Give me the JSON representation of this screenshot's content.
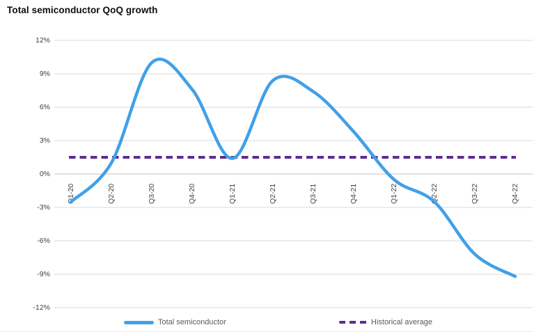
{
  "chart_data": {
    "type": "line",
    "title": "Total semiconductor QoQ growth",
    "categories": [
      "Q1-20",
      "Q2-20",
      "Q3-20",
      "Q4-20",
      "Q1-21",
      "Q2-21",
      "Q3-21",
      "Q4-21",
      "Q1-22",
      "Q2-22",
      "Q3-22",
      "Q4-22"
    ],
    "series": [
      {
        "name": "Total semiconductor",
        "style": "smooth-solid-line",
        "color": "#41a0e8",
        "values": [
          -2.5,
          1.0,
          10.0,
          7.6,
          1.4,
          8.4,
          7.4,
          3.8,
          -0.5,
          -2.5,
          -7.2,
          -9.2
        ]
      },
      {
        "name": "Historical average",
        "style": "dashed-constant-line",
        "color": "#5c2d91",
        "value": 1.5
      }
    ],
    "xlabel": "",
    "ylabel": "",
    "ylim": [
      -12,
      12
    ],
    "yticks": [
      12,
      9,
      6,
      3,
      0,
      -3,
      -6,
      -9,
      -12
    ],
    "ytick_format": "{v}%",
    "x_label_rotation_deg": -90,
    "grid": "horizontal",
    "legend_position": "bottom"
  },
  "colors": {
    "grid_line": "#d9d9d9",
    "axis_line": "#c0c0c0",
    "tick_text": "#404040",
    "legend_text": "#595959",
    "title_text": "#0d0d0d",
    "background": "#ffffff"
  }
}
